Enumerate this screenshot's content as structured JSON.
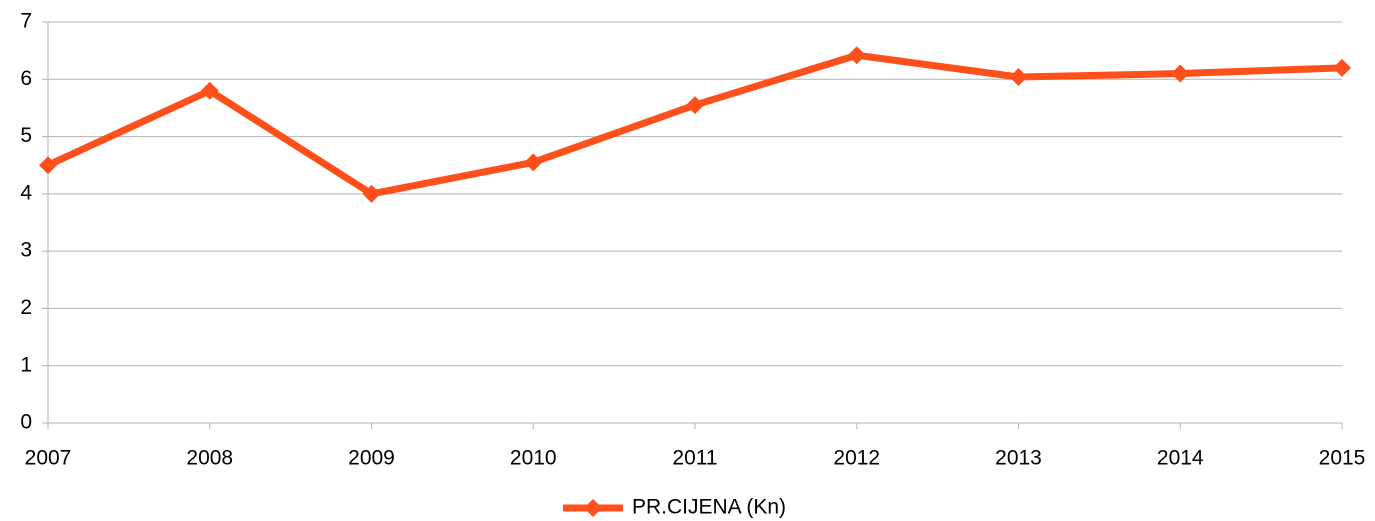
{
  "chart_data": {
    "type": "line",
    "x": [
      2007,
      2008,
      2009,
      2010,
      2011,
      2012,
      2013,
      2014,
      2015
    ],
    "series": [
      {
        "name": "PR.CIJENA (Kn)",
        "color": "#ff4f1a",
        "values": [
          4.5,
          5.8,
          4.0,
          4.55,
          5.55,
          6.42,
          6.04,
          6.1,
          6.2
        ]
      }
    ],
    "xlim": [
      2007,
      2015
    ],
    "xticks": [
      2007,
      2008,
      2009,
      2010,
      2011,
      2012,
      2013,
      2014,
      2015
    ],
    "ylim": [
      0,
      7
    ],
    "yticks": [
      0,
      1,
      2,
      3,
      4,
      5,
      6,
      7
    ],
    "grid": true,
    "legend": "bottom"
  }
}
